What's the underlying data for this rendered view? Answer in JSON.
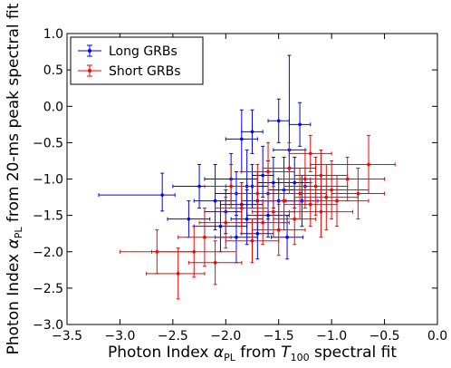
{
  "chart_data": {
    "type": "scatter",
    "title": "",
    "xlabel_parts": [
      "Photon Index ",
      "α",
      "PL",
      " from ",
      "T",
      "100",
      " spectral fit"
    ],
    "ylabel_parts": [
      "Photon Index ",
      "α",
      "PL",
      " from 20-ms peak spectral fit"
    ],
    "xlim": [
      -3.5,
      0.0
    ],
    "ylim": [
      -3.0,
      1.0
    ],
    "x_ticks": [
      -3.5,
      -3.0,
      -2.5,
      -2.0,
      -1.5,
      -1.0,
      -0.5,
      0.0
    ],
    "x_tick_labels": [
      "−3.5",
      "−3.0",
      "−2.5",
      "−2.0",
      "−1.5",
      "−1.0",
      "−0.5",
      "0.0"
    ],
    "y_ticks": [
      -3.0,
      -2.5,
      -2.0,
      -1.5,
      -1.0,
      -0.5,
      0.0,
      0.5,
      1.0
    ],
    "y_tick_labels": [
      "−3.0",
      "−2.5",
      "−2.0",
      "−1.5",
      "−1.0",
      "−0.5",
      "0.0",
      "0.5",
      "1.0"
    ],
    "grid": false,
    "legend_position": "top-left",
    "series": [
      {
        "name": "Long GRBs",
        "color": "#0000ff",
        "points": [
          [
            -2.6,
            -1.22,
            0.6,
            0.12,
            0.22,
            0.3
          ],
          [
            -2.25,
            -1.1,
            0.25,
            0.25,
            0.3,
            0.3
          ],
          [
            -2.35,
            -1.55,
            0.2,
            0.2,
            0.25,
            0.25
          ],
          [
            -2.1,
            -1.3,
            0.2,
            0.2,
            0.4,
            0.5
          ],
          [
            -2.05,
            -1.65,
            0.25,
            0.25,
            0.35,
            0.35
          ],
          [
            -2.0,
            -1.45,
            0.2,
            0.15,
            0.3,
            0.3
          ],
          [
            -1.95,
            -1.0,
            0.25,
            0.25,
            0.35,
            0.35
          ],
          [
            -1.9,
            -1.2,
            0.2,
            0.2,
            0.3,
            0.3
          ],
          [
            -1.9,
            -1.8,
            0.2,
            0.2,
            0.35,
            0.35
          ],
          [
            -1.85,
            -0.45,
            0.15,
            0.15,
            0.45,
            0.4
          ],
          [
            -1.85,
            -1.35,
            0.2,
            0.2,
            0.3,
            0.3
          ],
          [
            -1.8,
            -1.1,
            0.15,
            0.15,
            0.45,
            0.5
          ],
          [
            -1.8,
            -1.55,
            0.15,
            0.15,
            0.35,
            0.4
          ],
          [
            -1.75,
            -1.1,
            0.15,
            0.15,
            0.3,
            0.3
          ],
          [
            -1.75,
            -0.35,
            0.1,
            0.1,
            0.3,
            0.3
          ],
          [
            -1.7,
            -1.3,
            0.15,
            0.15,
            0.4,
            0.4
          ],
          [
            -1.7,
            -1.75,
            0.15,
            0.15,
            0.35,
            0.3
          ],
          [
            -1.65,
            -0.95,
            0.1,
            0.1,
            0.3,
            0.4
          ],
          [
            -1.6,
            -1.2,
            0.15,
            0.15,
            0.35,
            0.45
          ],
          [
            -1.6,
            -1.5,
            0.2,
            0.2,
            0.3,
            0.3
          ],
          [
            -1.55,
            -1.05,
            0.15,
            0.15,
            0.35,
            0.35
          ],
          [
            -1.5,
            -1.3,
            0.15,
            0.15,
            0.4,
            0.3
          ],
          [
            -1.5,
            -0.2,
            0.1,
            0.1,
            0.3,
            0.3
          ],
          [
            -1.45,
            -1.15,
            0.15,
            0.15,
            0.45,
            0.45
          ],
          [
            -1.42,
            -1.8,
            0.15,
            0.15,
            0.3,
            0.3
          ],
          [
            -1.4,
            -0.6,
            0.15,
            0.15,
            0.3,
            1.3
          ],
          [
            -1.35,
            -1.05,
            0.15,
            0.15,
            0.35,
            0.35
          ],
          [
            -1.3,
            -0.25,
            0.1,
            0.1,
            0.3,
            0.3
          ],
          [
            -1.28,
            -1.3,
            0.15,
            0.15,
            0.35,
            0.35
          ],
          [
            -1.25,
            -1.1,
            0.15,
            0.15,
            0.25,
            0.25
          ]
        ]
      },
      {
        "name": "Short GRBs",
        "color": "#ff0000",
        "points": [
          [
            -2.3,
            -2.0,
            0.4,
            0.4,
            0.35,
            0.35
          ],
          [
            -2.45,
            -2.3,
            0.3,
            0.25,
            0.35,
            0.35
          ],
          [
            -2.65,
            -2.0,
            0.35,
            0.35,
            0.3,
            0.3
          ],
          [
            -2.2,
            -1.8,
            0.25,
            0.25,
            0.4,
            0.4
          ],
          [
            -2.0,
            -1.6,
            0.25,
            0.25,
            0.35,
            0.35
          ],
          [
            -1.85,
            -1.4,
            0.25,
            0.25,
            0.35,
            0.35
          ],
          [
            -1.7,
            -1.2,
            0.25,
            0.25,
            0.4,
            0.4
          ],
          [
            -1.65,
            -1.6,
            0.25,
            0.25,
            0.3,
            0.3
          ],
          [
            -1.6,
            -0.9,
            0.25,
            0.25,
            0.4,
            0.4
          ],
          [
            -1.55,
            -1.45,
            0.2,
            0.2,
            0.35,
            0.35
          ],
          [
            -1.45,
            -1.3,
            0.25,
            0.25,
            0.4,
            0.4
          ],
          [
            -1.4,
            -0.85,
            0.25,
            0.25,
            0.35,
            0.35
          ],
          [
            -1.35,
            -1.55,
            0.2,
            0.2,
            0.35,
            0.35
          ],
          [
            -1.3,
            -1.2,
            0.25,
            0.25,
            0.35,
            0.35
          ],
          [
            -1.25,
            -1.0,
            0.25,
            0.25,
            0.4,
            0.4
          ],
          [
            -1.2,
            -1.35,
            0.25,
            0.25,
            0.3,
            0.3
          ],
          [
            -1.15,
            -1.1,
            0.3,
            0.3,
            0.4,
            0.4
          ],
          [
            -1.1,
            -0.95,
            0.25,
            0.25,
            0.35,
            0.35
          ],
          [
            -1.05,
            -1.25,
            0.3,
            0.3,
            0.45,
            0.45
          ],
          [
            -1.0,
            -1.15,
            0.35,
            0.35,
            0.4,
            0.4
          ],
          [
            -0.95,
            -1.3,
            0.3,
            0.3,
            0.35,
            0.35
          ],
          [
            -0.85,
            -1.0,
            0.35,
            0.35,
            0.3,
            0.3
          ],
          [
            -0.75,
            -1.2,
            0.25,
            0.25,
            0.35,
            0.35
          ],
          [
            -0.65,
            -0.8,
            0.55,
            0.25,
            0.4,
            0.4
          ],
          [
            -1.2,
            -0.65,
            0.2,
            0.2,
            0.25,
            0.25
          ],
          [
            -2.1,
            -2.15,
            0.25,
            0.25,
            0.3,
            0.3
          ],
          [
            -1.95,
            -1.1,
            0.25,
            0.25,
            0.3,
            0.3
          ],
          [
            -1.75,
            -1.85,
            0.25,
            0.25,
            0.3,
            0.3
          ],
          [
            -1.5,
            -1.7,
            0.25,
            0.25,
            0.35,
            0.35
          ],
          [
            -1.1,
            -1.45,
            0.3,
            0.3,
            0.35,
            0.35
          ]
        ]
      }
    ]
  }
}
